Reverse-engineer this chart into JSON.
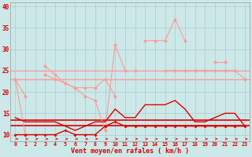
{
  "x": [
    0,
    1,
    2,
    3,
    4,
    5,
    6,
    7,
    8,
    9,
    10,
    11,
    12,
    13,
    14,
    15,
    16,
    17,
    18,
    19,
    20,
    21,
    22,
    23
  ],
  "line1_rafales": [
    23,
    19,
    null,
    26,
    24,
    22,
    21,
    19,
    18,
    11,
    31,
    25,
    null,
    32,
    32,
    32,
    37,
    32,
    null,
    null,
    27,
    27,
    null,
    23
  ],
  "line2_moyen": [
    23,
    10,
    null,
    24,
    23,
    22,
    21,
    21,
    21,
    23,
    19,
    null,
    25,
    null,
    null,
    25,
    25,
    25,
    25,
    25,
    25,
    25,
    25,
    23
  ],
  "line3_vent": [
    14,
    13,
    13,
    13,
    13,
    12,
    11,
    12,
    13,
    13,
    16,
    14,
    14,
    17,
    17,
    17,
    18,
    16,
    13,
    13,
    14,
    15,
    15,
    12
  ],
  "line4_bft": [
    10,
    10,
    10,
    10,
    10,
    11,
    10,
    10,
    10,
    12,
    13,
    12,
    12,
    12,
    12,
    12,
    12,
    12,
    12,
    12,
    12,
    12,
    12,
    12
  ],
  "hline_light1": 25.0,
  "hline_light2": 23.0,
  "hline_dark1": 13.5,
  "hline_dark2": 12.2,
  "color_light": "#ff9999",
  "color_dark": "#dd0000",
  "bg_color": "#cce8e8",
  "grid_color": "#aacccc",
  "xlabel": "Vent moyen/en rafales ( km/h )",
  "ylim": [
    8.5,
    41
  ],
  "yticks": [
    10,
    15,
    20,
    25,
    30,
    35,
    40
  ],
  "xticks": [
    0,
    1,
    2,
    3,
    4,
    5,
    6,
    7,
    8,
    9,
    10,
    11,
    12,
    13,
    14,
    15,
    16,
    17,
    18,
    19,
    20,
    21,
    22,
    23
  ]
}
